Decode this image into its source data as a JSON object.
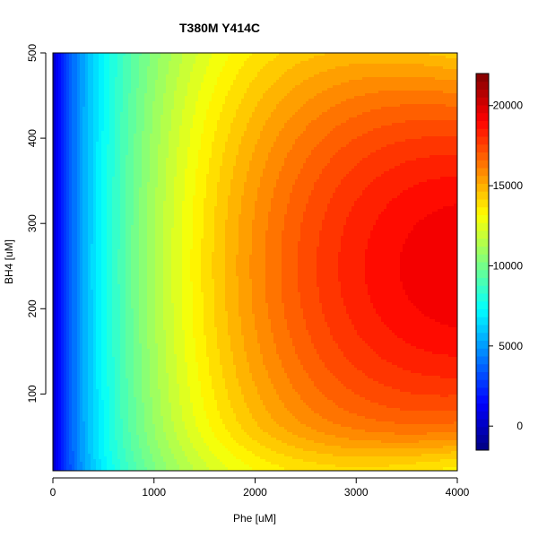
{
  "chart_data": {
    "type": "heatmap",
    "title": "T380M  Y414C",
    "xlabel": "Phe [uM]",
    "ylabel": "BH4 [uM]",
    "xlim": [
      0,
      4000
    ],
    "ylim": [
      10,
      500
    ],
    "x_ticks": [
      0,
      1000,
      2000,
      3000,
      4000
    ],
    "x_tick_labels": [
      "0",
      "1000",
      "2000",
      "3000",
      "4000"
    ],
    "y_ticks": [
      100,
      200,
      300,
      400,
      500
    ],
    "y_tick_labels": [
      "100",
      "200",
      "300",
      "400",
      "500"
    ],
    "colorbar": {
      "zlim": [
        -1500,
        22000
      ],
      "ticks": [
        0,
        5000,
        10000,
        15000,
        20000
      ],
      "tick_labels": [
        "0",
        "5000",
        "10000",
        "15000",
        "20000"
      ],
      "palette": [
        "#00007F",
        "#0000FF",
        "#007FFF",
        "#00FFFF",
        "#7FFF7F",
        "#FFFF00",
        "#FF7F00",
        "#FF0000",
        "#7F0000"
      ]
    },
    "surface": {
      "description": "filled contour of activity over Phe (x) and BH4 (y)",
      "max_value": 19500,
      "max_location": {
        "phe": 3900,
        "bh4": 250
      },
      "samples": [
        {
          "phe": 0,
          "bh4": 250,
          "value": 0
        },
        {
          "phe": 500,
          "bh4": 250,
          "value": 7500
        },
        {
          "phe": 1000,
          "bh4": 250,
          "value": 10000
        },
        {
          "phe": 1500,
          "bh4": 250,
          "value": 13000
        },
        {
          "phe": 2000,
          "bh4": 250,
          "value": 15000
        },
        {
          "phe": 3000,
          "bh4": 250,
          "value": 17500
        },
        {
          "phe": 3900,
          "bh4": 250,
          "value": 19500
        },
        {
          "phe": 3900,
          "bh4": 500,
          "value": 17300
        },
        {
          "phe": 3900,
          "bh4": 10,
          "value": 15000
        },
        {
          "phe": 1500,
          "bh4": 10,
          "value": 11500
        }
      ]
    },
    "grid": false,
    "legend": "right"
  }
}
